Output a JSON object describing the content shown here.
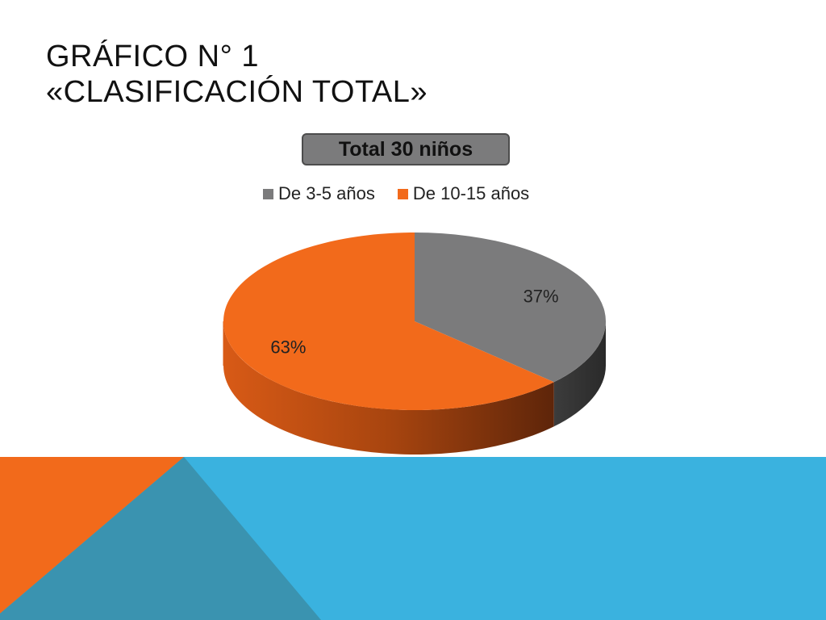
{
  "slide": {
    "title_line1": "GRÁFICO N° 1",
    "title_line2": "«CLASIFICACIÓN TOTAL»"
  },
  "colors": {
    "orange": "#f26a1b",
    "gray": "#7b7b7c",
    "blue": "#3ab2df",
    "teal": "#3a93b0"
  },
  "chart_data": {
    "type": "pie",
    "title": "Total 30 niños",
    "categories": [
      "De 3-5 años",
      "De 10-15 años"
    ],
    "values": [
      37,
      63
    ],
    "labels": [
      "37%",
      "63%"
    ],
    "colors": [
      "#7b7b7c",
      "#f26a1b"
    ],
    "legend_position": "top",
    "style": "3d"
  }
}
